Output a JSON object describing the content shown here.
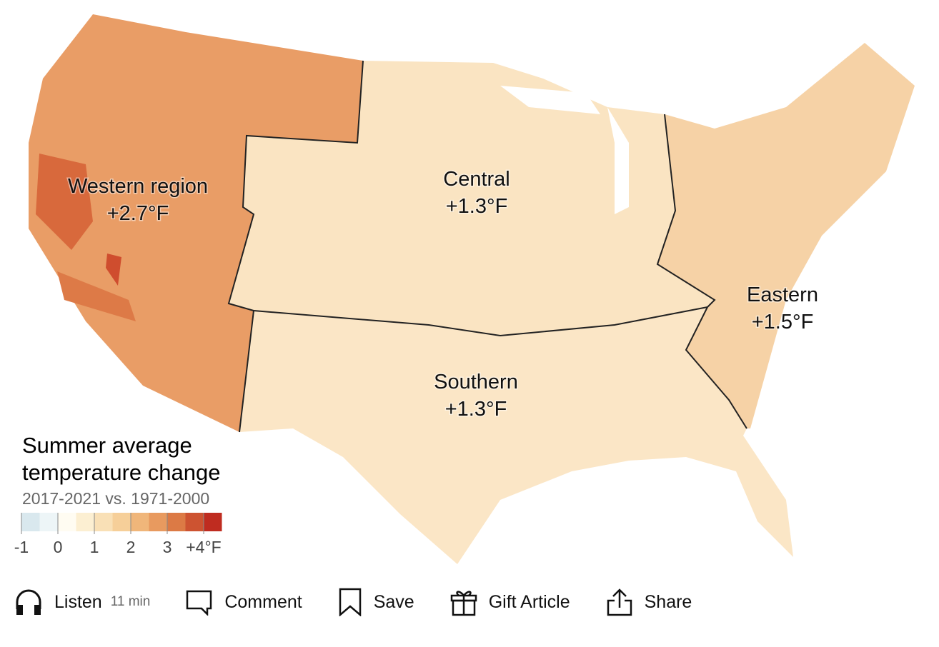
{
  "map": {
    "regions": [
      {
        "name": "Western region",
        "change": "+2.7°F"
      },
      {
        "name": "Central",
        "change": "+1.3°F"
      },
      {
        "name": "Southern",
        "change": "+1.3°F"
      },
      {
        "name": "Eastern",
        "change": "+1.5°F"
      }
    ]
  },
  "legend": {
    "title_line1": "Summer average",
    "title_line2": "temperature change",
    "subtitle": "2017-2021 vs. 1971-2000",
    "colors": [
      "#d9e8ee",
      "#edf5f7",
      "#fffcf2",
      "#fcefd2",
      "#f9e0b6",
      "#f6cf99",
      "#f0b67a",
      "#e89a5f",
      "#dc7a45",
      "#cd5331",
      "#bf2c20"
    ],
    "ticks": [
      "-1",
      "0",
      "1",
      "2",
      "3",
      "+4°F"
    ]
  },
  "toolbar": {
    "listen": "Listen",
    "listen_time": "11 min",
    "comment": "Comment",
    "save": "Save",
    "gift": "Gift Article",
    "share": "Share"
  }
}
